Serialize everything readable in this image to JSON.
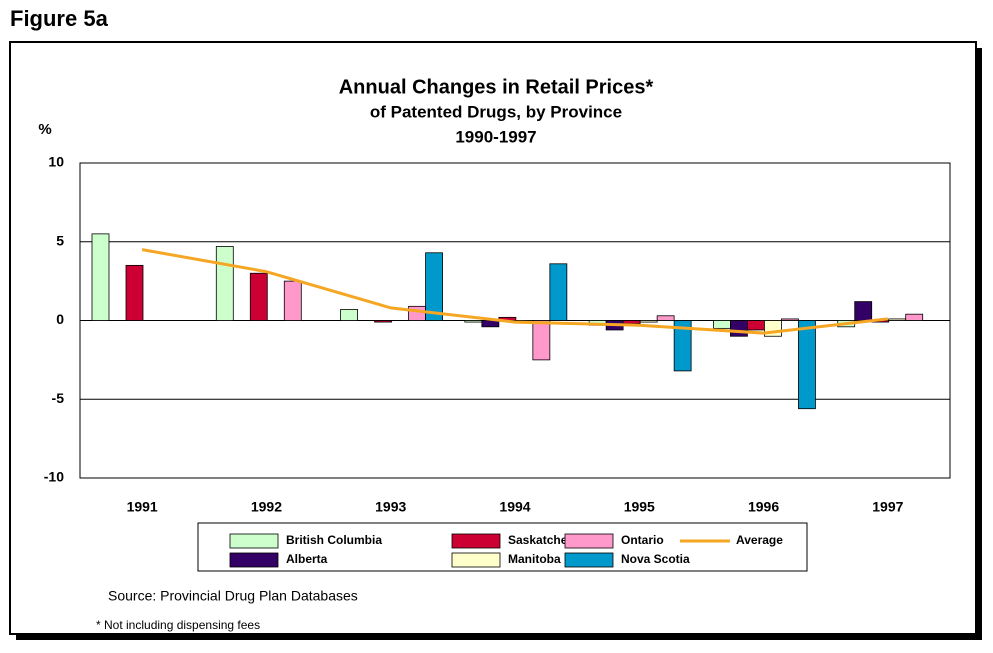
{
  "figure_label": "Figure 5a",
  "source": "Source: Provincial Drug Plan Databases",
  "note": "* Not including dispensing fees",
  "chart_data": {
    "type": "bar",
    "title": "Annual Changes in Retail Prices*",
    "subtitle": [
      "of Patented Drugs, by Province",
      "1990-1997"
    ],
    "y_label": "%",
    "categories": [
      "1991",
      "1992",
      "1993",
      "1994",
      "1995",
      "1996",
      "1997"
    ],
    "series": [
      {
        "name": "British Columbia",
        "color": "#ccffcc",
        "values": [
          5.5,
          4.7,
          0.7,
          -0.1,
          -0.3,
          -0.5,
          -0.4
        ]
      },
      {
        "name": "Alberta",
        "color": "#330066",
        "values": [
          null,
          null,
          null,
          -0.4,
          -0.6,
          -1.0,
          1.2
        ]
      },
      {
        "name": "Saskatchewan",
        "color": "#cc0033",
        "values": [
          3.5,
          3.0,
          -0.1,
          0.2,
          -0.2,
          -0.6,
          -0.1
        ]
      },
      {
        "name": "Manitoba",
        "color": "#ffffcc",
        "values": [
          null,
          null,
          null,
          -0.1,
          -0.1,
          -1.0,
          0.1
        ]
      },
      {
        "name": "Ontario",
        "color": "#ff99cc",
        "values": [
          null,
          2.5,
          0.9,
          -2.5,
          0.3,
          0.1,
          0.4
        ]
      },
      {
        "name": "Nova Scotia",
        "color": "#0099cc",
        "values": [
          null,
          null,
          4.3,
          3.6,
          -3.2,
          -5.6,
          null
        ]
      },
      {
        "name": "Average",
        "color": "#f5a623",
        "line": true,
        "values": [
          4.5,
          3.1,
          0.8,
          -0.1,
          -0.3,
          -0.8,
          0.1
        ]
      }
    ],
    "ylim": [
      -10,
      10
    ],
    "yticks": [
      -10,
      -5,
      0,
      5,
      10
    ],
    "grid": true
  }
}
